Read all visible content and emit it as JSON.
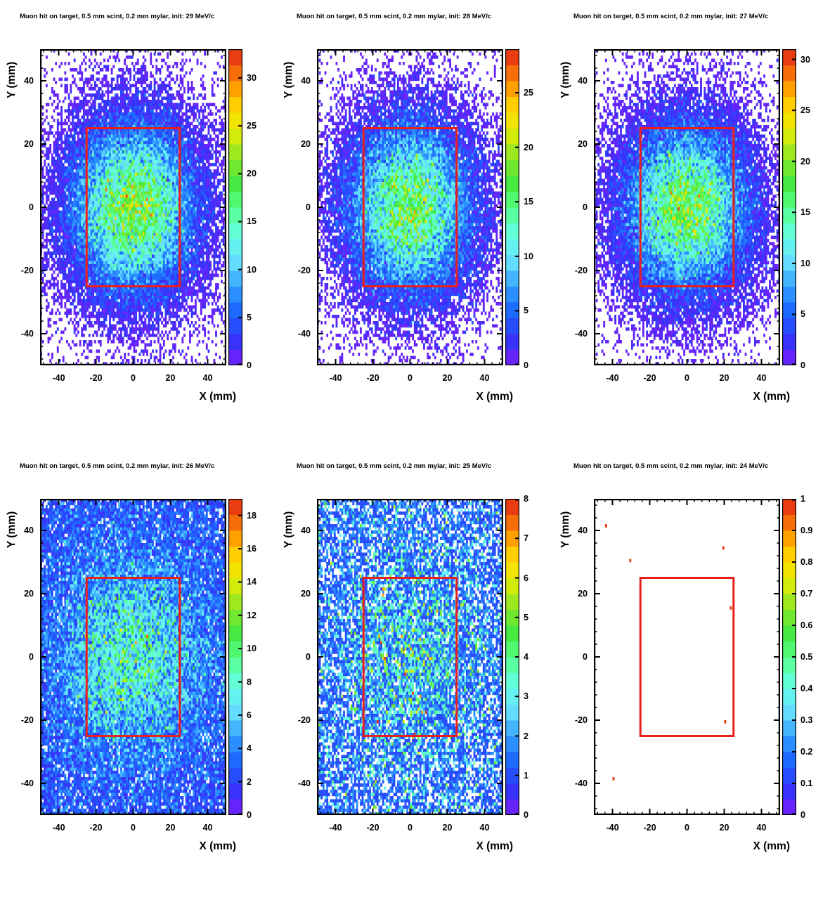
{
  "page": {
    "background": "#ffffff"
  },
  "palette": {
    "n_contours": 20,
    "zero_color": "#ffffff",
    "stops": [
      [
        0.0,
        "#7d1dfa"
      ],
      [
        0.08,
        "#3333fa"
      ],
      [
        0.17,
        "#1a66ff"
      ],
      [
        0.25,
        "#33a1ff"
      ],
      [
        0.33,
        "#66e0ff"
      ],
      [
        0.41,
        "#66ffe6"
      ],
      [
        0.5,
        "#55ff88"
      ],
      [
        0.58,
        "#44e83c"
      ],
      [
        0.67,
        "#99e822"
      ],
      [
        0.75,
        "#eded00"
      ],
      [
        0.83,
        "#ffcc00"
      ],
      [
        0.9,
        "#ff8800"
      ],
      [
        0.95,
        "#ee5511"
      ],
      [
        1.0,
        "#e62310"
      ]
    ]
  },
  "frame": {
    "line_color": "#000000",
    "cut_rect_color": "#e8201c"
  },
  "axes": {
    "x_label": "X (mm)",
    "y_label": "Y (mm)",
    "x_range": [
      -50,
      50
    ],
    "y_range": [
      -50,
      50
    ],
    "major_ticks": [
      -40,
      -20,
      0,
      20,
      40
    ],
    "minor_step": 4
  },
  "chart_data": [
    {
      "type": "heatmap",
      "title": "Muon hit on target, 0.5 mm scint, 0.2 mm mylar, init: 29 MeV/c",
      "xlabel": "X (mm)",
      "ylabel": "Y (mm)",
      "xlim": [
        -50,
        50
      ],
      "ylim": [
        -50,
        50
      ],
      "bins": [
        100,
        100
      ],
      "zmax": 33,
      "colorbar_ticks": [
        0,
        5,
        10,
        15,
        20,
        25,
        30
      ],
      "cut_rectangle": {
        "x0": -25,
        "y0": -25,
        "x1": 25,
        "y1": 25
      },
      "model": {
        "background": 0.1,
        "amplitude": 20.0,
        "sigma_x": 20,
        "sigma_y": 16,
        "seed": 101
      },
      "points": []
    },
    {
      "type": "heatmap",
      "title": "Muon hit on target, 0.5 mm scint, 0.2 mm mylar, init: 28 MeV/c",
      "xlabel": "X (mm)",
      "ylabel": "Y (mm)",
      "xlim": [
        -50,
        50
      ],
      "ylim": [
        -50,
        50
      ],
      "bins": [
        100,
        100
      ],
      "zmax": 29,
      "colorbar_ticks": [
        0,
        5,
        10,
        15,
        20,
        25
      ],
      "cut_rectangle": {
        "x0": -25,
        "y0": -25,
        "x1": 25,
        "y1": 25
      },
      "model": {
        "background": 0.1,
        "amplitude": 16.5,
        "sigma_x": 20,
        "sigma_y": 16,
        "seed": 102
      },
      "points": []
    },
    {
      "type": "heatmap",
      "title": "Muon hit on target, 0.5 mm scint, 0.2 mm mylar, init: 27 MeV/c",
      "xlabel": "X (mm)",
      "ylabel": "Y (mm)",
      "xlim": [
        -50,
        50
      ],
      "ylim": [
        -50,
        50
      ],
      "bins": [
        100,
        100
      ],
      "zmax": 31,
      "colorbar_ticks": [
        0,
        5,
        10,
        15,
        20,
        25,
        30
      ],
      "cut_rectangle": {
        "x0": -25,
        "y0": -25,
        "x1": 25,
        "y1": 25
      },
      "model": {
        "background": 0.1,
        "amplitude": 18.0,
        "sigma_x": 20,
        "sigma_y": 16,
        "seed": 103
      },
      "points": []
    },
    {
      "type": "heatmap",
      "title": "Muon hit on target, 0.5 mm scint, 0.2 mm mylar, init: 26 MeV/c",
      "xlabel": "X (mm)",
      "ylabel": "Y (mm)",
      "xlim": [
        -50,
        50
      ],
      "ylim": [
        -50,
        50
      ],
      "bins": [
        100,
        100
      ],
      "zmax": 19,
      "colorbar_ticks": [
        0,
        2,
        4,
        6,
        8,
        10,
        12,
        14,
        16,
        18
      ],
      "cut_rectangle": {
        "x0": -25,
        "y0": -25,
        "x1": 25,
        "y1": 25
      },
      "model": {
        "background": 2.1,
        "amplitude": 6.2,
        "sigma_x": 24,
        "sigma_y": 19,
        "seed": 104
      },
      "points": []
    },
    {
      "type": "heatmap",
      "title": "Muon hit on target, 0.5 mm scint, 0.2 mm mylar, init: 25 MeV/c",
      "xlabel": "X (mm)",
      "ylabel": "Y (mm)",
      "xlim": [
        -50,
        50
      ],
      "ylim": [
        -50,
        50
      ],
      "bins": [
        100,
        100
      ],
      "zmax": 8,
      "colorbar_ticks": [
        0,
        1,
        2,
        3,
        4,
        5,
        6,
        7,
        8
      ],
      "cut_rectangle": {
        "x0": -25,
        "y0": -25,
        "x1": 25,
        "y1": 25
      },
      "model": {
        "background": 1.15,
        "amplitude": 1.55,
        "sigma_x": 22,
        "sigma_y": 20,
        "seed": 105
      },
      "points": []
    },
    {
      "type": "heatmap",
      "title": "Muon hit on target, 0.5 mm scint, 0.2 mm mylar, init: 24 MeV/c",
      "xlabel": "X (mm)",
      "ylabel": "Y (mm)",
      "xlim": [
        -50,
        50
      ],
      "ylim": [
        -50,
        50
      ],
      "bins": [
        100,
        100
      ],
      "zmax": 1,
      "colorbar_ticks": [
        0,
        0.1,
        0.2,
        0.3,
        0.4,
        0.5,
        0.6,
        0.7,
        0.8,
        0.9,
        1
      ],
      "cut_rectangle": {
        "x0": -25,
        "y0": -25,
        "x1": 25,
        "y1": 25
      },
      "model": null,
      "points": [
        {
          "x": -44,
          "y": 42,
          "value": 1
        },
        {
          "x": -31,
          "y": 31,
          "value": 1
        },
        {
          "x": 19,
          "y": 35,
          "value": 1
        },
        {
          "x": 23,
          "y": 16,
          "value": 1
        },
        {
          "x": 20,
          "y": -20,
          "value": 1
        },
        {
          "x": -40,
          "y": -38,
          "value": 1
        }
      ]
    }
  ]
}
